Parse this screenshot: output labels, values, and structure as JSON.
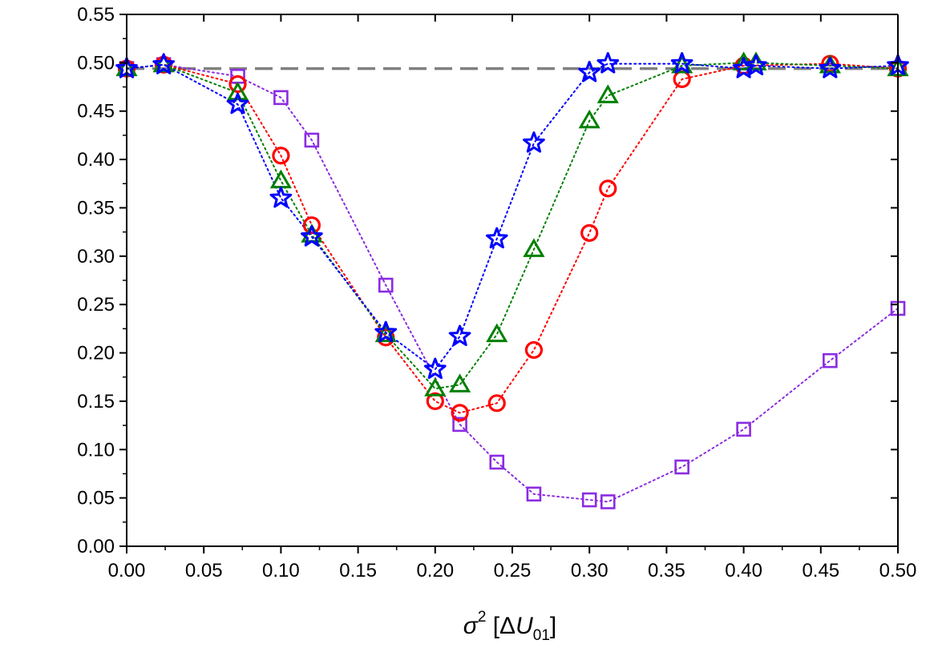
{
  "chart_data": {
    "type": "scatter",
    "title": "",
    "xlabel": {
      "sigma": "σ",
      "sup": "2",
      "bracket_open": " [Δ",
      "U": "U",
      "sub": "01",
      "bracket_close": "]"
    },
    "ylabel": "",
    "xlim": [
      0.0,
      0.5
    ],
    "ylim": [
      0.0,
      0.55
    ],
    "x_ticks": [
      "0.00",
      "0.05",
      "0.10",
      "0.15",
      "0.20",
      "0.25",
      "0.30",
      "0.35",
      "0.40",
      "0.45",
      "0.50"
    ],
    "y_ticks": [
      "0.00",
      "0.05",
      "0.10",
      "0.15",
      "0.20",
      "0.25",
      "0.30",
      "0.35",
      "0.40",
      "0.45",
      "0.50",
      "0.55"
    ],
    "grid": false,
    "reference_line": {
      "y": 0.494,
      "color": "#808080",
      "style": "dashed"
    },
    "series": [
      {
        "name": "squares",
        "marker": "square",
        "color": "#8B2BE2",
        "x": [
          0.0,
          0.024,
          0.072,
          0.1,
          0.12,
          0.168,
          0.216,
          0.24,
          0.264,
          0.3,
          0.312,
          0.36,
          0.4,
          0.456,
          0.5
        ],
        "y": [
          0.494,
          0.498,
          0.486,
          0.464,
          0.42,
          0.27,
          0.126,
          0.087,
          0.054,
          0.048,
          0.046,
          0.082,
          0.121,
          0.192,
          0.246
        ]
      },
      {
        "name": "circles",
        "marker": "circle",
        "color": "#FF0000",
        "x": [
          0.0,
          0.024,
          0.072,
          0.1,
          0.12,
          0.168,
          0.2,
          0.216,
          0.24,
          0.264,
          0.3,
          0.312,
          0.36,
          0.4,
          0.456,
          0.5
        ],
        "y": [
          0.494,
          0.498,
          0.478,
          0.404,
          0.332,
          0.216,
          0.15,
          0.138,
          0.148,
          0.203,
          0.324,
          0.37,
          0.483,
          0.497,
          0.499,
          0.494
        ]
      },
      {
        "name": "triangles",
        "marker": "triangle",
        "color": "#008000",
        "x": [
          0.0,
          0.024,
          0.072,
          0.1,
          0.12,
          0.168,
          0.2,
          0.216,
          0.24,
          0.264,
          0.3,
          0.312,
          0.36,
          0.4,
          0.408,
          0.456,
          0.5
        ],
        "y": [
          0.494,
          0.498,
          0.469,
          0.378,
          0.322,
          0.219,
          0.163,
          0.167,
          0.219,
          0.307,
          0.44,
          0.466,
          0.497,
          0.5,
          0.5,
          0.497,
          0.494
        ]
      },
      {
        "name": "stars",
        "marker": "star",
        "color": "#0000FF",
        "x": [
          0.0,
          0.024,
          0.072,
          0.1,
          0.12,
          0.168,
          0.2,
          0.216,
          0.24,
          0.264,
          0.3,
          0.312,
          0.36,
          0.4,
          0.408,
          0.456,
          0.5
        ],
        "y": [
          0.494,
          0.498,
          0.457,
          0.36,
          0.32,
          0.221,
          0.183,
          0.217,
          0.318,
          0.417,
          0.49,
          0.499,
          0.499,
          0.494,
          0.497,
          0.494,
          0.497
        ]
      }
    ]
  }
}
